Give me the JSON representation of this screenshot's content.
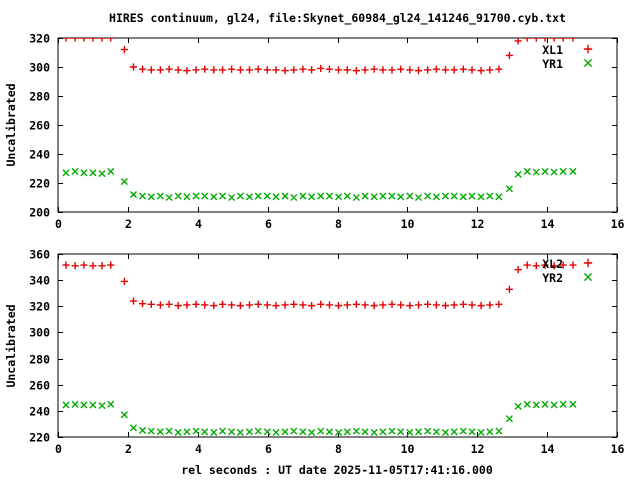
{
  "title": "HIRES continuum, gl24, file:Skynet_60984_gl24_141246_91700.cyb.txt",
  "xlabel": "rel seconds : UT date 2025-11-05T17:41:16.000",
  "colors": {
    "series_red": "#e60000",
    "series_green": "#00aa00",
    "axis": "#000000",
    "background": "#ffffff"
  },
  "chart_data": [
    {
      "type": "scatter",
      "panel": "top",
      "ylabel": "Uncalibrated",
      "xlim": [
        0,
        16
      ],
      "ylim": [
        200,
        320
      ],
      "xticks": [
        0,
        2,
        4,
        6,
        8,
        10,
        12,
        14,
        16
      ],
      "yticks": [
        200,
        220,
        240,
        260,
        280,
        300,
        320
      ],
      "grid": false,
      "legend_position": "top-right-inside",
      "x": [
        0.23,
        0.49,
        0.74,
        1.0,
        1.26,
        1.51,
        1.9,
        2.16,
        2.42,
        2.67,
        2.93,
        3.18,
        3.44,
        3.69,
        3.95,
        4.2,
        4.46,
        4.71,
        4.97,
        5.22,
        5.48,
        5.73,
        5.99,
        6.24,
        6.5,
        6.75,
        7.01,
        7.26,
        7.52,
        7.77,
        8.03,
        8.28,
        8.54,
        8.79,
        9.05,
        9.3,
        9.56,
        9.81,
        10.07,
        10.32,
        10.58,
        10.83,
        11.09,
        11.34,
        11.6,
        11.85,
        12.11,
        12.36,
        12.62,
        12.92,
        13.17,
        13.43,
        13.69,
        13.94,
        14.2,
        14.46,
        14.74
      ],
      "series": [
        {
          "name": "XL1",
          "marker": "plus",
          "color": "#e60000",
          "y": [
            320,
            320,
            320,
            320,
            320,
            320,
            312,
            300,
            298.5,
            298,
            298,
            298.5,
            298,
            297.5,
            298,
            298.5,
            298,
            298,
            298.5,
            298,
            298,
            298.5,
            298,
            298,
            297.5,
            298,
            298.5,
            298,
            299,
            298.5,
            298,
            298,
            297.5,
            298,
            298.5,
            298,
            298,
            298.5,
            298,
            297.5,
            298,
            298.5,
            298,
            298,
            298.5,
            298,
            297.5,
            298,
            298.5,
            308,
            318,
            320,
            320,
            320,
            320,
            320,
            320
          ]
        },
        {
          "name": "YR1",
          "marker": "cross",
          "color": "#00aa00",
          "y": [
            227,
            228,
            227,
            227,
            226.5,
            228,
            221,
            212,
            211,
            210.5,
            211,
            210,
            211,
            210.5,
            211,
            211,
            210.5,
            211,
            210,
            211,
            210.5,
            211,
            211,
            210.5,
            211,
            210,
            211,
            210.5,
            211,
            211,
            210.5,
            211,
            210,
            211,
            210.5,
            211,
            211,
            210.5,
            211,
            210,
            211,
            210.5,
            211,
            211,
            210.5,
            211,
            210.5,
            211,
            210.5,
            216,
            226,
            228,
            227.5,
            228,
            227.5,
            228,
            228
          ]
        }
      ]
    },
    {
      "type": "scatter",
      "panel": "bottom",
      "ylabel": "Uncalibrated",
      "xlim": [
        0,
        16
      ],
      "ylim": [
        220,
        360
      ],
      "xticks": [
        0,
        2,
        4,
        6,
        8,
        10,
        12,
        14,
        16
      ],
      "yticks": [
        220,
        240,
        260,
        280,
        300,
        320,
        340,
        360
      ],
      "grid": false,
      "legend_position": "top-right-inside",
      "x": [
        0.23,
        0.49,
        0.74,
        1.0,
        1.26,
        1.51,
        1.9,
        2.16,
        2.42,
        2.67,
        2.93,
        3.18,
        3.44,
        3.69,
        3.95,
        4.2,
        4.46,
        4.71,
        4.97,
        5.22,
        5.48,
        5.73,
        5.99,
        6.24,
        6.5,
        6.75,
        7.01,
        7.26,
        7.52,
        7.77,
        8.03,
        8.28,
        8.54,
        8.79,
        9.05,
        9.3,
        9.56,
        9.81,
        10.07,
        10.32,
        10.58,
        10.83,
        11.09,
        11.34,
        11.6,
        11.85,
        12.11,
        12.36,
        12.62,
        12.92,
        13.17,
        13.43,
        13.69,
        13.94,
        14.2,
        14.46,
        14.74
      ],
      "series": [
        {
          "name": "XL2",
          "marker": "plus",
          "color": "#e60000",
          "y": [
            351.5,
            351,
            351.5,
            351,
            351,
            351.5,
            339,
            324,
            322,
            321.5,
            321,
            321.5,
            320.5,
            321,
            321.5,
            321,
            320.5,
            321.5,
            321,
            320.5,
            321,
            321.5,
            321,
            320.5,
            321,
            321.5,
            321,
            320.5,
            321.5,
            321,
            320.5,
            321,
            321.5,
            321,
            320.5,
            321,
            321.5,
            321,
            320.5,
            321,
            321.5,
            321,
            320.5,
            321,
            321.5,
            321,
            320.5,
            321,
            321.5,
            333,
            348,
            351.5,
            351,
            351.5,
            351,
            351.5,
            351.5
          ]
        },
        {
          "name": "YR2",
          "marker": "cross",
          "color": "#00aa00",
          "y": [
            244.5,
            245,
            244.5,
            244.5,
            244,
            245,
            237,
            227,
            225,
            224.5,
            224,
            224.5,
            223.5,
            224,
            224.5,
            224,
            223.5,
            224.5,
            224,
            223.5,
            224,
            224.5,
            224,
            223.5,
            224,
            224.5,
            224,
            223.5,
            224.5,
            224,
            223.5,
            224,
            224.5,
            224,
            223.5,
            224,
            224.5,
            224,
            223.5,
            224,
            224.5,
            224,
            223.5,
            224,
            224.5,
            224,
            223.5,
            224,
            224.5,
            234,
            243.5,
            245,
            244.5,
            245,
            244.5,
            245,
            245
          ]
        }
      ]
    }
  ]
}
